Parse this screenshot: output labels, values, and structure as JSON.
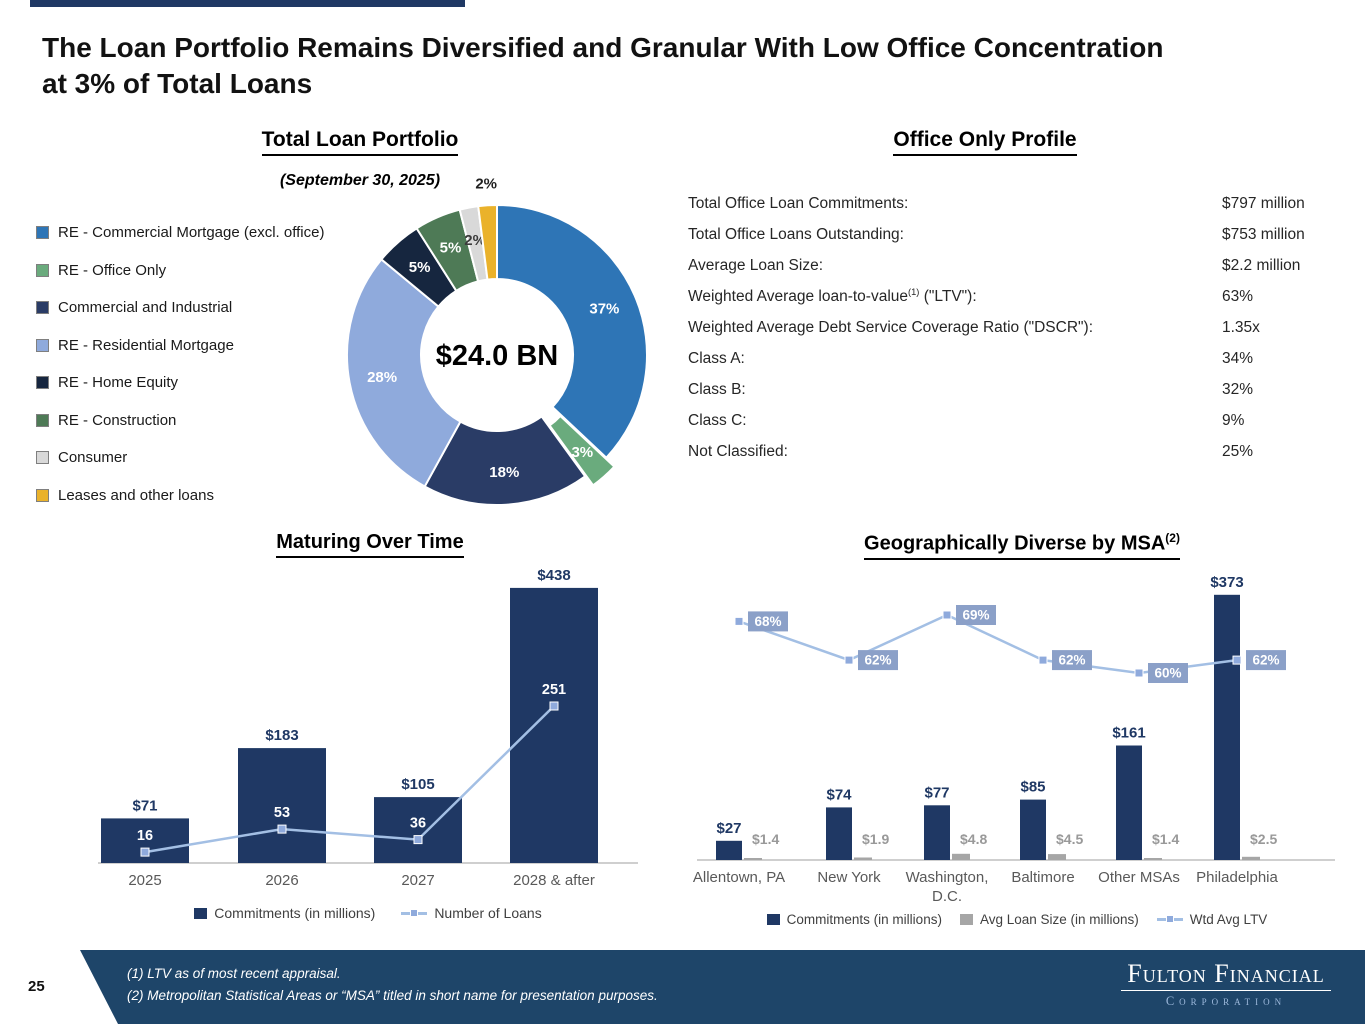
{
  "colors": {
    "navy": "#1F3864",
    "steel_blue": "#2E75B6",
    "light_blue": "#8FAADC",
    "line_blue": "#A3BFE4",
    "ltv_box": "#8BA0C8",
    "gray_bar": "#A6A6A6",
    "footer_navy": "#1E4569"
  },
  "header": {
    "title": "The Loan Portfolio Remains Diversified and Granular With Low Office Concentration at 3% of Total Loans"
  },
  "office_profile": {
    "title": "Office Only Profile",
    "rows": [
      {
        "label": "Total Office Loan Commitments:",
        "value": "$797 million"
      },
      {
        "label": "Total Office Loans Outstanding:",
        "value": "$753 million"
      },
      {
        "label": "Average Loan Size:",
        "value": "$2.2 million"
      },
      {
        "label": "Weighted Average loan-to-value",
        "label_sup": "(1)",
        "label_post": " (\"LTV\"):",
        "value": "63%"
      },
      {
        "label": "Weighted Average Debt Service Coverage Ratio (\"DSCR\"):",
        "value": "1.35x"
      },
      {
        "label": "Class A:",
        "value": "34%"
      },
      {
        "label": "Class B:",
        "value": "32%"
      },
      {
        "label": "Class C:",
        "value": "9%"
      },
      {
        "label": "Not Classified:",
        "value": "25%"
      }
    ]
  },
  "chart_data": [
    {
      "type": "pie",
      "title": "Total Loan Portfolio",
      "subtitle": "(September 30, 2025)",
      "center_label": "$24.0 BN",
      "labels": [
        "RE - Commercial Mortgage (excl. office)",
        "RE - Office Only",
        "Commercial and Industrial",
        "RE - Residential Mortgage",
        "RE - Home Equity",
        "RE - Construction",
        "Consumer",
        "Leases and other loans"
      ],
      "values": [
        37,
        3,
        18,
        28,
        5,
        5,
        2,
        2
      ],
      "colors": [
        "#2E75B6",
        "#6AAB7D",
        "#2A3C66",
        "#8FAADC",
        "#16263F",
        "#4E7A56",
        "#D9D9D9",
        "#EAB22B"
      ],
      "label_pos": [
        "in",
        "in",
        "in",
        "in",
        "in",
        "in",
        "in",
        "out"
      ],
      "label_colors": [
        "#ffffff",
        "#ffffff",
        "#ffffff",
        "#ffffff",
        "#ffffff",
        "#ffffff",
        "#3B3B3B",
        "#1F1F1F"
      ],
      "exploded": [
        false,
        true,
        false,
        false,
        false,
        false,
        false,
        false
      ]
    },
    {
      "type": "bar",
      "title": "Maturing Over Time",
      "categories": [
        "2025",
        "2026",
        "2027",
        "2028 & after"
      ],
      "series": [
        {
          "name": "Commitments (in millions)",
          "values": [
            71,
            183,
            105,
            438
          ],
          "labels": [
            "$71",
            "$183",
            "$105",
            "$438"
          ]
        },
        {
          "name": "Number of Loans",
          "type": "line",
          "values": [
            16,
            53,
            36,
            251
          ]
        }
      ],
      "bar_color": "#1F3864",
      "line_color": "#A3BFE4",
      "marker_color": "#8FAADC",
      "legend_position": "bottom"
    },
    {
      "type": "bar",
      "title": "Geographically Diverse by MSA",
      "title_sup": "(2)",
      "categories": [
        "Allentown, PA",
        "New York",
        "Washington,\nD.C.",
        "Baltimore",
        "Other MSAs",
        "Philadelphia"
      ],
      "series": [
        {
          "name": "Commitments (in millions)",
          "values": [
            27,
            74,
            77,
            85,
            161,
            373
          ],
          "labels": [
            "$27",
            "$74",
            "$77",
            "$85",
            "$161",
            "$373"
          ]
        },
        {
          "name": "Avg Loan Size (in millions)",
          "values": [
            1.4,
            1.9,
            4.8,
            4.5,
            1.4,
            2.5
          ],
          "labels": [
            "$1.4",
            "$1.9",
            "$4.8",
            "$4.5",
            "$1.4",
            "$2.5"
          ]
        },
        {
          "name": "Wtd Avg LTV",
          "type": "line",
          "values": [
            68,
            62,
            69,
            62,
            60,
            62
          ],
          "labels": [
            "68%",
            "62%",
            "69%",
            "62%",
            "60%",
            "62%"
          ]
        }
      ],
      "bar_color": "#1F3864",
      "bar2_color": "#A6A6A6",
      "line_color": "#A3BFE4",
      "marker_color": "#8FAADC",
      "ltv_box_color": "#8BA0C8",
      "legend_position": "bottom"
    }
  ],
  "footer": {
    "page_number": "25",
    "notes": [
      "(1) LTV as of most recent appraisal.",
      "(2) Metropolitan Statistical Areas or “MSA” titled in short name for presentation purposes."
    ],
    "logo": {
      "name": "Fulton Financial",
      "subtitle": "Corporation"
    }
  }
}
